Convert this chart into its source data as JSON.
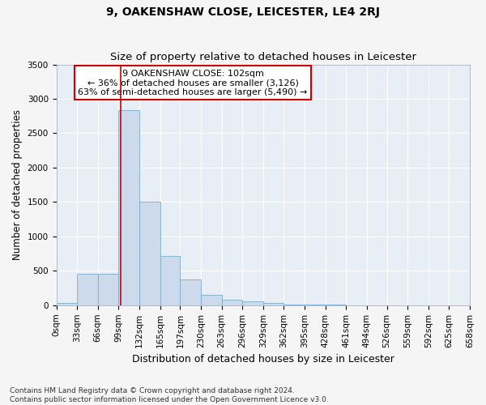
{
  "title": "9, OAKENSHAW CLOSE, LEICESTER, LE4 2RJ",
  "subtitle": "Size of property relative to detached houses in Leicester",
  "xlabel": "Distribution of detached houses by size in Leicester",
  "ylabel": "Number of detached properties",
  "bar_values_full": [
    30,
    460,
    460,
    2830,
    1500,
    720,
    370,
    150,
    80,
    55,
    30,
    15,
    8,
    4,
    2,
    1,
    0,
    0,
    0,
    0
  ],
  "bin_edges": [
    0,
    33,
    66,
    99,
    132,
    165,
    197,
    230,
    263,
    296,
    329,
    362,
    395,
    428,
    461,
    494,
    526,
    559,
    592,
    625,
    658
  ],
  "bin_labels": [
    "0sqm",
    "33sqm",
    "66sqm",
    "99sqm",
    "132sqm",
    "165sqm",
    "197sqm",
    "230sqm",
    "263sqm",
    "296sqm",
    "329sqm",
    "362sqm",
    "395sqm",
    "428sqm",
    "461sqm",
    "494sqm",
    "526sqm",
    "559sqm",
    "592sqm",
    "625sqm",
    "658sqm"
  ],
  "bar_color": "#ccdaeb",
  "bar_edge_color": "#7aadce",
  "property_line_x": 102,
  "property_line_color": "#cc0000",
  "annotation_text": "9 OAKENSHAW CLOSE: 102sqm\n← 36% of detached houses are smaller (3,126)\n63% of semi-detached houses are larger (5,490) →",
  "annotation_box_color": "#ffffff",
  "annotation_box_edge": "#cc0000",
  "ylim": [
    0,
    3500
  ],
  "yticks": [
    0,
    500,
    1000,
    1500,
    2000,
    2500,
    3000,
    3500
  ],
  "plot_bg_color": "#e8eef5",
  "fig_bg_color": "#f5f5f5",
  "footer_text": "Contains HM Land Registry data © Crown copyright and database right 2024.\nContains public sector information licensed under the Open Government Licence v3.0.",
  "title_fontsize": 10,
  "subtitle_fontsize": 9.5,
  "xlabel_fontsize": 9,
  "ylabel_fontsize": 8.5,
  "tick_fontsize": 7.5,
  "annotation_fontsize": 8,
  "footer_fontsize": 6.5
}
